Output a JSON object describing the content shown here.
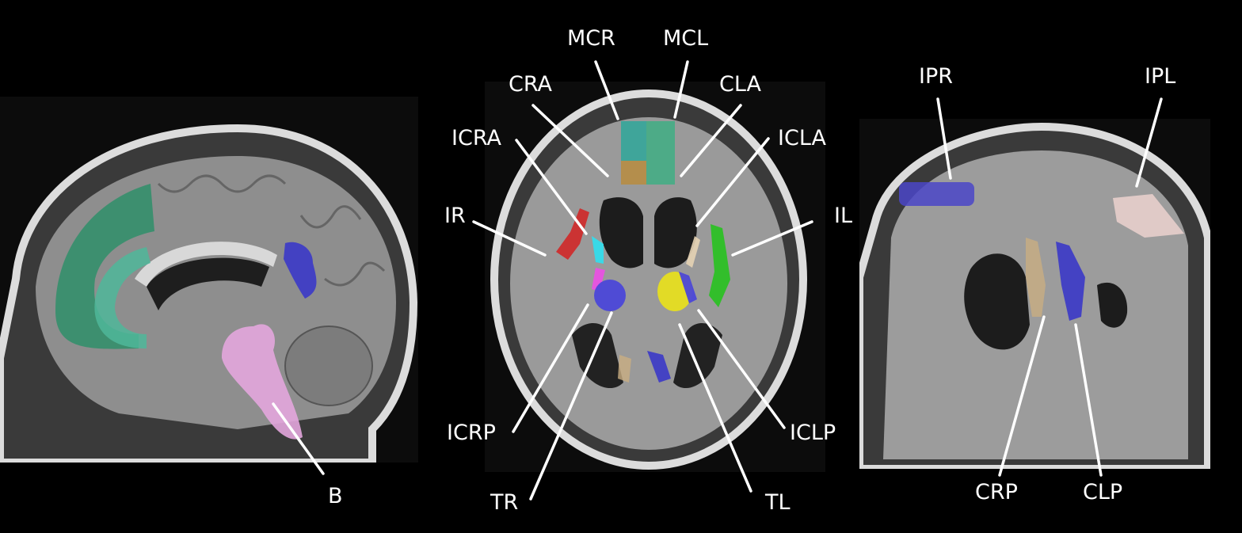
{
  "panels": {
    "sagittal": {
      "view": "sagittal"
    },
    "axial": {
      "view": "axial"
    },
    "coronal": {
      "view": "coronal"
    }
  },
  "labels": {
    "B": "B",
    "MCR": "MCR",
    "MCL": "MCL",
    "CRA": "CRA",
    "CLA": "CLA",
    "ICRA": "ICRA",
    "ICLA": "ICLA",
    "IR": "IR",
    "IL": "IL",
    "ICRP": "ICRP",
    "ICLP": "ICLP",
    "TR": "TR",
    "TL": "TL",
    "IPR": "IPR",
    "IPL": "IPL",
    "CRP": "CRP",
    "CLP": "CLP"
  },
  "region_colors": {
    "frontal_green": "#2f8f6a",
    "cingulate_teal": "#4fb79a",
    "brainstem_pink": "#e3a6dd",
    "blue": "#3b39c8",
    "red": "#d02828",
    "green": "#27c21f",
    "cyan": "#2fe0f0",
    "magenta": "#ec4fe6",
    "yellow": "#e6de20",
    "tan": "#c9ae82",
    "orange": "#c98a3e",
    "light_pink": "#e8cfcc"
  }
}
